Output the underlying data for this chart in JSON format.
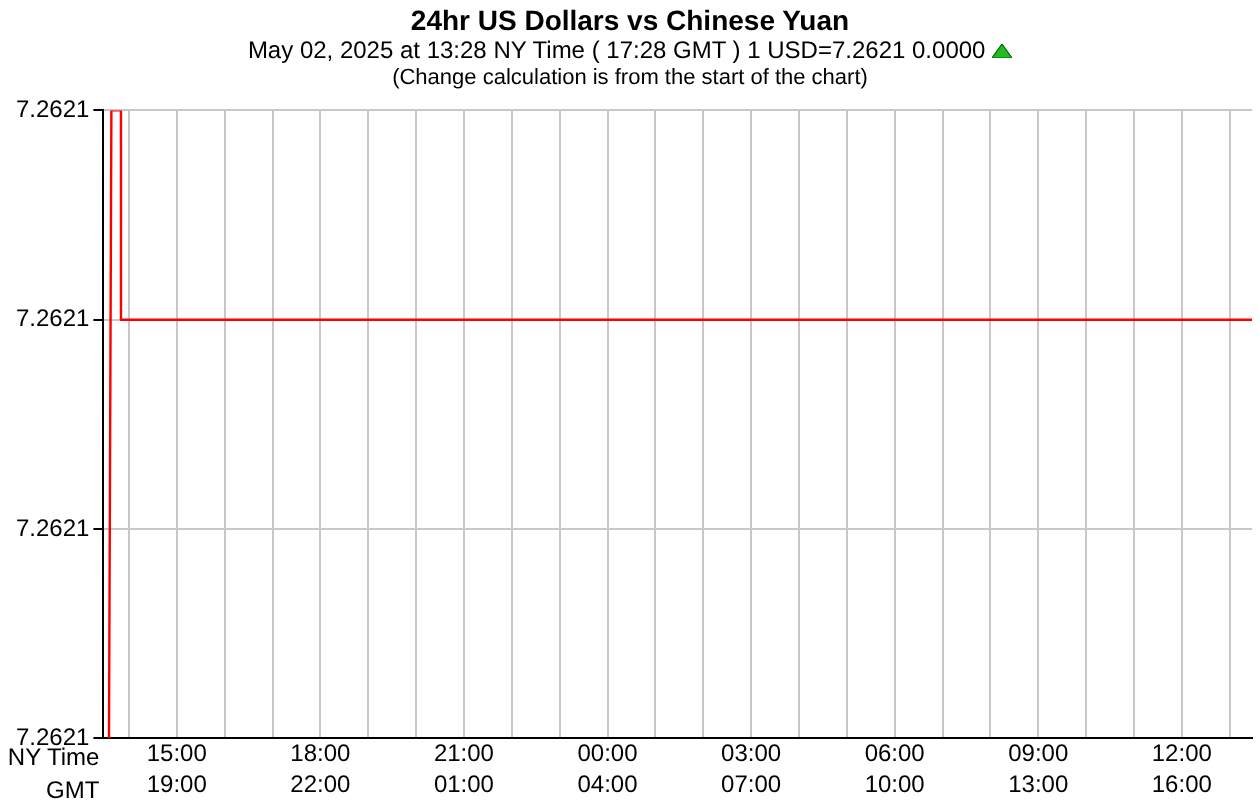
{
  "chart_data": {
    "type": "line",
    "title": "24hr US Dollars vs Chinese Yuan",
    "subtitle": "May 02, 2025 at 13:28 NY Time ( 17:28 GMT )  1 USD=7.2621  0.0000",
    "annotations": [
      "(Change calculation is from the start of the chart)"
    ],
    "xlabel": "NY Time",
    "x2label": "GMT",
    "series": [
      {
        "color": "#ff0000",
        "x": [
          "2025-05-01T13:35",
          "2025-05-01T13:38",
          "2025-05-01T13:50",
          "2025-05-01T13:50",
          "2025-05-02T13:28"
        ],
        "values": [
          7.26206,
          7.26212,
          7.26212,
          7.2621,
          7.2621
        ]
      }
    ],
    "xlim": [
      "2025-05-01T13:28",
      "2025-05-02T13:28"
    ],
    "xticks": [
      {
        "value": "2025-05-01T14:00",
        "label": null
      },
      {
        "value": "2025-05-01T15:00",
        "label": "15:00"
      },
      {
        "value": "2025-05-01T16:00",
        "label": null
      },
      {
        "value": "2025-05-01T17:00",
        "label": null
      },
      {
        "value": "2025-05-01T18:00",
        "label": "18:00"
      },
      {
        "value": "2025-05-01T19:00",
        "label": null
      },
      {
        "value": "2025-05-01T20:00",
        "label": null
      },
      {
        "value": "2025-05-01T21:00",
        "label": "21:00"
      },
      {
        "value": "2025-05-01T22:00",
        "label": null
      },
      {
        "value": "2025-05-01T23:00",
        "label": null
      },
      {
        "value": "2025-05-02T00:00",
        "label": "00:00"
      },
      {
        "value": "2025-05-02T01:00",
        "label": null
      },
      {
        "value": "2025-05-02T02:00",
        "label": null
      },
      {
        "value": "2025-05-02T03:00",
        "label": "03:00"
      },
      {
        "value": "2025-05-02T04:00",
        "label": null
      },
      {
        "value": "2025-05-02T05:00",
        "label": null
      },
      {
        "value": "2025-05-02T06:00",
        "label": "06:00"
      },
      {
        "value": "2025-05-02T07:00",
        "label": null
      },
      {
        "value": "2025-05-02T08:00",
        "label": null
      },
      {
        "value": "2025-05-02T09:00",
        "label": "09:00"
      },
      {
        "value": "2025-05-02T10:00",
        "label": null
      },
      {
        "value": "2025-05-02T11:00",
        "label": null
      },
      {
        "value": "2025-05-02T12:00",
        "label": "12:00"
      },
      {
        "value": "2025-05-02T13:00",
        "label": null
      }
    ],
    "x2lim": [
      "2025-05-01T17:28",
      "2025-05-02T17:28"
    ],
    "x2ticks": [
      {
        "value": "2025-05-01T19:00",
        "label": "19:00"
      },
      {
        "value": "2025-05-01T22:00",
        "label": "22:00"
      },
      {
        "value": "2025-05-02T01:00",
        "label": "01:00"
      },
      {
        "value": "2025-05-02T04:00",
        "label": "04:00"
      },
      {
        "value": "2025-05-02T07:00",
        "label": "07:00"
      },
      {
        "value": "2025-05-02T10:00",
        "label": "10:00"
      },
      {
        "value": "2025-05-02T13:00",
        "label": "13:00"
      },
      {
        "value": "2025-05-02T16:00",
        "label": "16:00"
      }
    ],
    "ylim": [
      7.26206,
      7.26212
    ],
    "yticks": [
      {
        "value": 7.26206,
        "label": "7.2621"
      },
      {
        "value": 7.26208,
        "label": "7.2621"
      },
      {
        "value": 7.2621,
        "label": "7.2621"
      },
      {
        "value": 7.26212,
        "label": "7.2621"
      }
    ],
    "grid": true,
    "legend": false,
    "marker": "none",
    "line_style": "solid"
  }
}
